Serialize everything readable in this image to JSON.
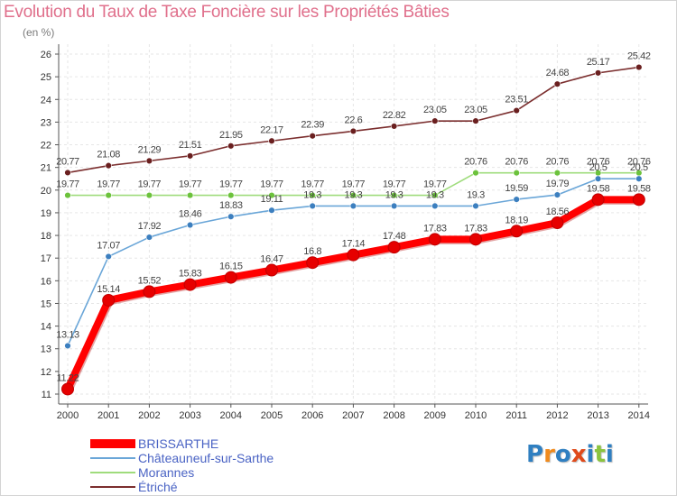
{
  "title": "Evolution du Taux de Taxe Foncière sur les Propriétés Bâties",
  "unit_label": "(en %)",
  "logo": {
    "text": "Proxiti",
    "letters": [
      {
        "ch": "P",
        "color": "#2f7fc1"
      },
      {
        "ch": "r",
        "color": "#f08a1c"
      },
      {
        "ch": "o",
        "color": "#2f7fc1"
      },
      {
        "ch": "x",
        "color": "#e04a1a"
      },
      {
        "ch": "i",
        "color": "#2f7fc1"
      },
      {
        "ch": "t",
        "color": "#8bc43f"
      },
      {
        "ch": "i",
        "color": "#2f7fc1"
      }
    ]
  },
  "chart_data": {
    "type": "line",
    "title": "Evolution du Taux de Taxe Foncière sur les Propriétés Bâties",
    "ylabel": "(en %)",
    "xlabel": "",
    "ylim": [
      11,
      26
    ],
    "yticks": [
      11,
      12,
      13,
      14,
      15,
      16,
      17,
      18,
      19,
      20,
      21,
      22,
      23,
      24,
      25,
      26
    ],
    "grid": true,
    "x": [
      2000,
      2001,
      2002,
      2003,
      2004,
      2005,
      2006,
      2007,
      2008,
      2009,
      2010,
      2011,
      2012,
      2013,
      2014
    ],
    "series": [
      {
        "name": "Étriché",
        "color": "#7b2e2e",
        "marker_color": "#6a1f1f",
        "values": [
          20.77,
          21.08,
          21.29,
          21.51,
          21.95,
          22.17,
          22.39,
          22.6,
          22.82,
          23.05,
          23.05,
          23.51,
          24.68,
          25.17,
          25.42
        ],
        "labels": [
          "20.77",
          "21.08",
          "21.29",
          "21.51",
          "21.95",
          "22.17",
          "22.39",
          "22.6",
          "22.82",
          "23.05",
          "23.05",
          "23.51",
          "24.68",
          "25.17",
          "25.42"
        ]
      },
      {
        "name": "Morannes",
        "color": "#9fdc7c",
        "marker_color": "#6cc23c",
        "values": [
          19.77,
          19.77,
          19.77,
          19.77,
          19.77,
          19.77,
          19.77,
          19.77,
          19.77,
          19.77,
          20.76,
          20.76,
          20.76,
          20.76,
          20.76
        ],
        "labels": [
          "19.77",
          "19.77",
          "19.77",
          "19.77",
          "19.77",
          "19.77",
          "19.77",
          "19.77",
          "19.77",
          "19.77",
          "20.76",
          "20.76",
          "20.76",
          "20.76",
          "20.76"
        ]
      },
      {
        "name": "Châteauneuf-sur-Sarthe",
        "color": "#6aa6d8",
        "marker_color": "#3c7fbf",
        "values": [
          13.13,
          17.07,
          17.92,
          18.46,
          18.83,
          19.11,
          19.3,
          19.3,
          19.3,
          19.3,
          19.3,
          19.59,
          19.79,
          20.5,
          20.5
        ],
        "labels": [
          "13.13",
          "17.07",
          "17.92",
          "18.46",
          "18.83",
          "19.11",
          "19.3",
          "19.3",
          "19.3",
          "19.3",
          "19.3",
          "19.59",
          "19.79",
          "20.5",
          "20.5"
        ]
      },
      {
        "name": "BRISSARTHE",
        "color": "#ff0000",
        "marker_color": "#e60000",
        "values": [
          11.22,
          15.14,
          15.52,
          15.83,
          16.15,
          16.47,
          16.8,
          17.14,
          17.48,
          17.83,
          17.83,
          18.19,
          18.56,
          19.58,
          19.58
        ],
        "labels": [
          "11.22",
          "15.14",
          "15.52",
          "15.83",
          "16.15",
          "16.47",
          "16.8",
          "17.14",
          "17.48",
          "17.83",
          "17.83",
          "18.19",
          "18.56",
          "19.58",
          "19.58"
        ]
      }
    ],
    "legend": {
      "position": "bottom-left",
      "order": [
        "BRISSARTHE",
        "Châteauneuf-sur-Sarthe",
        "Morannes",
        "Étriché"
      ]
    }
  }
}
